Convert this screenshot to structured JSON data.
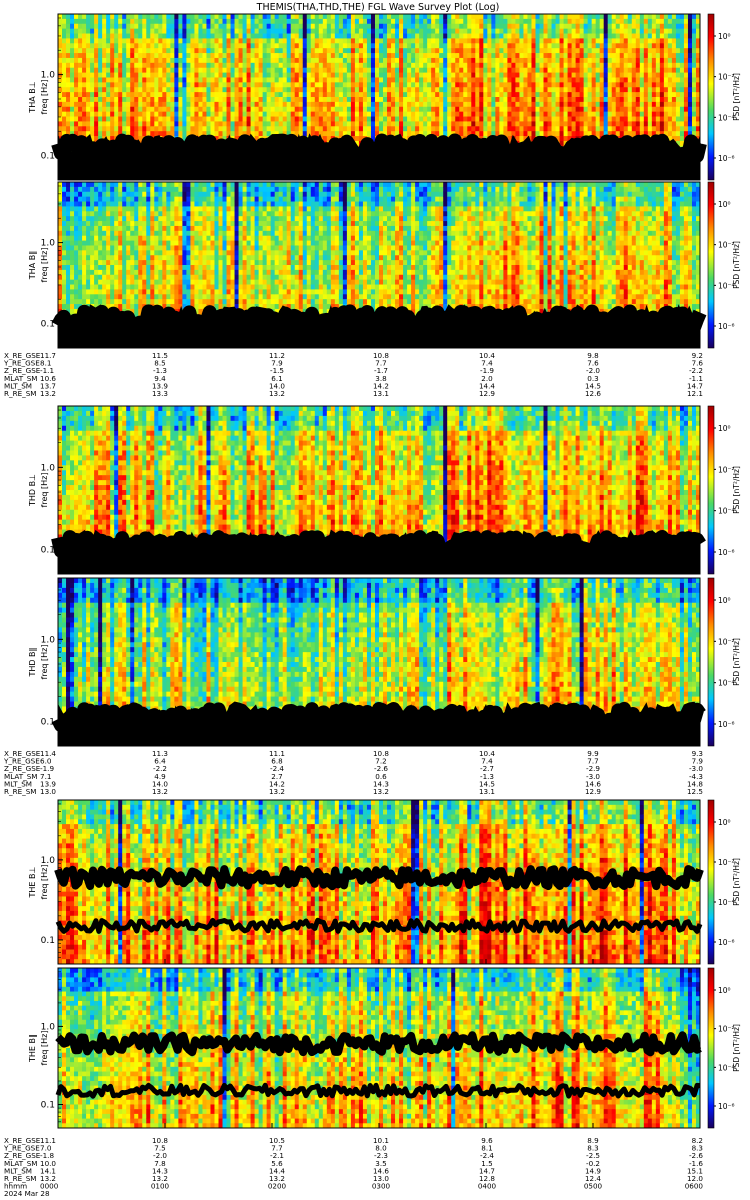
{
  "chart_data": {
    "type": "heatmap",
    "title": "THEMIS(THA,THD,THE) FGL Wave Survey Plot (Log)",
    "date": "2024 Mar 28",
    "time_axis": {
      "label": "hhmm",
      "ticks": [
        "0000",
        "0100",
        "0200",
        "0300",
        "0400",
        "0500",
        "0600"
      ]
    },
    "y_axis": {
      "label": "freq [Hz]",
      "scale": "log",
      "ticks": [
        "1.0",
        "0.1"
      ]
    },
    "colorbar": {
      "label": "PSD [nT²/Hz]",
      "scale": "log",
      "ticks": [
        "10⁰",
        "10⁻²",
        "10⁻⁴",
        "10⁻⁶"
      ],
      "colors": [
        "#1a005a",
        "#0019ff",
        "#00c8ff",
        "#4cd964",
        "#ffff00",
        "#ff8c00",
        "#ff0000",
        "#a00000"
      ]
    },
    "panels": [
      {
        "name": "THA B_L",
        "ylabel": "THA B⊥",
        "ylim_hz": [
          0.05,
          5.6
        ],
        "trace": "single",
        "trace_hz": 0.12,
        "intensity": 0.62
      },
      {
        "name": "THA B_par",
        "ylabel": "THA B‖",
        "ylim_hz": [
          0.05,
          5.6
        ],
        "trace": "single",
        "trace_hz": 0.11,
        "intensity": 0.55
      },
      {
        "name": "THD B_L",
        "ylabel": "THD B⊥",
        "ylim_hz": [
          0.05,
          5.6
        ],
        "trace": "single",
        "trace_hz": 0.11,
        "intensity": 0.6
      },
      {
        "name": "THD B_par",
        "ylabel": "THD B‖",
        "ylim_hz": [
          0.05,
          5.6
        ],
        "trace": "single",
        "trace_hz": 0.11,
        "intensity": 0.5
      },
      {
        "name": "THE B_L",
        "ylabel": "THE B⊥",
        "ylim_hz": [
          0.05,
          5.6
        ],
        "trace": "double",
        "trace_hz": [
          0.6,
          0.15
        ],
        "intensity": 0.62
      },
      {
        "name": "THE B_par",
        "ylabel": "THE B‖",
        "ylim_hz": [
          0.05,
          5.6
        ],
        "trace": "double",
        "trace_hz": [
          0.6,
          0.15
        ],
        "intensity": 0.55
      }
    ],
    "ephemeris": [
      {
        "probe": "THA",
        "rows": [
          {
            "label": "X_RE_GSE",
            "values": [
              "11.7",
              "11.5",
              "11.2",
              "10.8",
              "10.4",
              "9.8",
              "9.2"
            ]
          },
          {
            "label": "Y_RE_GSE",
            "values": [
              "8.1",
              "8.5",
              "7.9",
              "7.7",
              "7.4",
              "7.6",
              "7.6"
            ]
          },
          {
            "label": "Z_RE_GSE",
            "values": [
              "-1.1",
              "-1.3",
              "-1.5",
              "-1.7",
              "-1.9",
              "-2.0",
              "-2.2"
            ]
          },
          {
            "label": "MLAT_SM",
            "values": [
              "10.6",
              "9.4",
              "6.1",
              "3.8",
              "2.0",
              "0.3",
              "-1.1"
            ]
          },
          {
            "label": "MLT_SM",
            "values": [
              "13.7",
              "13.9",
              "14.0",
              "14.2",
              "14.4",
              "14.5",
              "14.7"
            ]
          },
          {
            "label": "R_RE_SM",
            "values": [
              "13.2",
              "13.3",
              "13.2",
              "13.1",
              "12.9",
              "12.6",
              "12.1"
            ]
          }
        ]
      },
      {
        "probe": "THD",
        "rows": [
          {
            "label": "X_RE_GSE",
            "values": [
              "11.4",
              "11.3",
              "11.1",
              "10.8",
              "10.4",
              "9.9",
              "9.3"
            ]
          },
          {
            "label": "Y_RE_GSE",
            "values": [
              "6.0",
              "6.4",
              "6.8",
              "7.2",
              "7.4",
              "7.7",
              "7.9"
            ]
          },
          {
            "label": "Z_RE_GSE",
            "values": [
              "-1.9",
              "-2.2",
              "-2.4",
              "-2.6",
              "-2.7",
              "-2.9",
              "-3.0"
            ]
          },
          {
            "label": "MLAT_SM",
            "values": [
              "7.1",
              "4.9",
              "2.7",
              "0.6",
              "-1.3",
              "-3.0",
              "-4.3"
            ]
          },
          {
            "label": "MLT_SM",
            "values": [
              "13.9",
              "14.0",
              "14.2",
              "14.3",
              "14.5",
              "14.6",
              "14.8"
            ]
          },
          {
            "label": "R_RE_SM",
            "values": [
              "13.0",
              "13.2",
              "13.2",
              "13.2",
              "13.1",
              "12.9",
              "12.5"
            ]
          }
        ]
      },
      {
        "probe": "THE",
        "rows": [
          {
            "label": "X_RE_GSE",
            "values": [
              "11.1",
              "10.8",
              "10.5",
              "10.1",
              "9.6",
              "8.9",
              "8.2"
            ]
          },
          {
            "label": "Y_RE_GSE",
            "values": [
              "7.0",
              "7.5",
              "7.7",
              "8.0",
              "8.1",
              "8.3",
              "8.3"
            ]
          },
          {
            "label": "Z_RE_GSE",
            "values": [
              "-1.8",
              "-2.0",
              "-2.1",
              "-2.3",
              "-2.4",
              "-2.5",
              "-2.6"
            ]
          },
          {
            "label": "MLAT_SM",
            "values": [
              "10.0",
              "7.8",
              "5.6",
              "3.5",
              "1.5",
              "-0.2",
              "-1.6"
            ]
          },
          {
            "label": "MLT_SM",
            "values": [
              "14.1",
              "14.3",
              "14.4",
              "14.6",
              "14.7",
              "14.9",
              "15.1"
            ]
          },
          {
            "label": "R_RE_SM",
            "values": [
              "13.2",
              "13.2",
              "13.2",
              "13.0",
              "12.8",
              "12.4",
              "12.0"
            ]
          }
        ]
      }
    ]
  }
}
